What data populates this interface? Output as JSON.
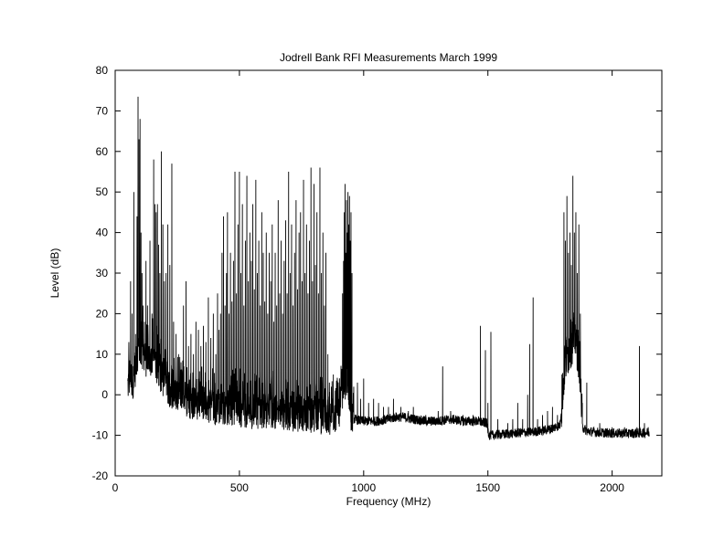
{
  "chart_data": {
    "type": "line",
    "title": "Jodrell Bank RFI Measurements March 1999",
    "xlabel": "Frequency (MHz)",
    "ylabel": "Level (dB)",
    "xlim": [
      0,
      2200
    ],
    "ylim": [
      -20,
      80
    ],
    "xticks": [
      0,
      500,
      1000,
      1500,
      2000
    ],
    "yticks": [
      -20,
      -10,
      0,
      10,
      20,
      30,
      40,
      50,
      60,
      70,
      80
    ],
    "grid": false,
    "legend": "none",
    "line_color": "#000000",
    "series": [
      {
        "baseline": [
          [
            50,
            2
          ],
          [
            60,
            5
          ],
          [
            70,
            3
          ],
          [
            80,
            6
          ],
          [
            95,
            12
          ],
          [
            110,
            10
          ],
          [
            130,
            8
          ],
          [
            150,
            9
          ],
          [
            175,
            6
          ],
          [
            200,
            3
          ],
          [
            240,
            0
          ],
          [
            280,
            -1
          ],
          [
            320,
            -2
          ],
          [
            360,
            -2
          ],
          [
            400,
            -3
          ],
          [
            450,
            -3
          ],
          [
            500,
            -3.5
          ],
          [
            550,
            -4
          ],
          [
            600,
            -4
          ],
          [
            650,
            -4
          ],
          [
            700,
            -4.5
          ],
          [
            750,
            -5
          ],
          [
            800,
            -5
          ],
          [
            850,
            -5.5
          ],
          [
            900,
            -5
          ],
          [
            920,
            2
          ],
          [
            935,
            5
          ],
          [
            950,
            -5
          ],
          [
            960,
            -6
          ],
          [
            1000,
            -6.5
          ],
          [
            1050,
            -6.5
          ],
          [
            1100,
            -6
          ],
          [
            1130,
            -5.5
          ],
          [
            1160,
            -5.5
          ],
          [
            1200,
            -6
          ],
          [
            1250,
            -6.5
          ],
          [
            1300,
            -6.5
          ],
          [
            1350,
            -6
          ],
          [
            1400,
            -6.5
          ],
          [
            1450,
            -6.5
          ],
          [
            1495,
            -7
          ],
          [
            1505,
            -10
          ],
          [
            1550,
            -9.8
          ],
          [
            1600,
            -9.5
          ],
          [
            1650,
            -9.3
          ],
          [
            1700,
            -9
          ],
          [
            1750,
            -8.5
          ],
          [
            1790,
            -7.5
          ],
          [
            1810,
            8
          ],
          [
            1830,
            12
          ],
          [
            1850,
            15
          ],
          [
            1870,
            8
          ],
          [
            1880,
            -8
          ],
          [
            1900,
            -9
          ],
          [
            1950,
            -9.3
          ],
          [
            2000,
            -9.5
          ],
          [
            2050,
            -9.5
          ],
          [
            2100,
            -9.5
          ],
          [
            2150,
            -9.3
          ]
        ],
        "spikes": [
          [
            55,
            13
          ],
          [
            62,
            28
          ],
          [
            68,
            20
          ],
          [
            75,
            50
          ],
          [
            82,
            15
          ],
          [
            88,
            44
          ],
          [
            92,
            73.5
          ],
          [
            96,
            63
          ],
          [
            100,
            68
          ],
          [
            104,
            40
          ],
          [
            108,
            30
          ],
          [
            112,
            22
          ],
          [
            118,
            18
          ],
          [
            124,
            33
          ],
          [
            130,
            22
          ],
          [
            140,
            38
          ],
          [
            148,
            20
          ],
          [
            155,
            58
          ],
          [
            160,
            47
          ],
          [
            165,
            45
          ],
          [
            170,
            47
          ],
          [
            175,
            37
          ],
          [
            180,
            30
          ],
          [
            186,
            60
          ],
          [
            192,
            42
          ],
          [
            198,
            28
          ],
          [
            205,
            30
          ],
          [
            212,
            42
          ],
          [
            220,
            32
          ],
          [
            228,
            57
          ],
          [
            235,
            18
          ],
          [
            245,
            15
          ],
          [
            255,
            10
          ],
          [
            265,
            8
          ],
          [
            275,
            22
          ],
          [
            285,
            28
          ],
          [
            295,
            12
          ],
          [
            305,
            15
          ],
          [
            315,
            10
          ],
          [
            325,
            18
          ],
          [
            335,
            16
          ],
          [
            345,
            12
          ],
          [
            355,
            17
          ],
          [
            365,
            13
          ],
          [
            375,
            24
          ],
          [
            385,
            14
          ],
          [
            395,
            20
          ],
          [
            405,
            10
          ],
          [
            412,
            25
          ],
          [
            418,
            16
          ],
          [
            424,
            20
          ],
          [
            430,
            35
          ],
          [
            436,
            44
          ],
          [
            442,
            22
          ],
          [
            448,
            30
          ],
          [
            452,
            45
          ],
          [
            458,
            20
          ],
          [
            464,
            35
          ],
          [
            470,
            23
          ],
          [
            476,
            33
          ],
          [
            482,
            55
          ],
          [
            488,
            25
          ],
          [
            494,
            42
          ],
          [
            500,
            55
          ],
          [
            506,
            30
          ],
          [
            512,
            47
          ],
          [
            518,
            22
          ],
          [
            524,
            38
          ],
          [
            530,
            54
          ],
          [
            536,
            28
          ],
          [
            542,
            40
          ],
          [
            548,
            33
          ],
          [
            554,
            47
          ],
          [
            560,
            26
          ],
          [
            566,
            53
          ],
          [
            572,
            30
          ],
          [
            578,
            38
          ],
          [
            584,
            22
          ],
          [
            590,
            45
          ],
          [
            596,
            35
          ],
          [
            602,
            23
          ],
          [
            608,
            40
          ],
          [
            614,
            20
          ],
          [
            620,
            35
          ],
          [
            626,
            28
          ],
          [
            632,
            42
          ],
          [
            638,
            18
          ],
          [
            644,
            35
          ],
          [
            650,
            22
          ],
          [
            656,
            48
          ],
          [
            662,
            25
          ],
          [
            668,
            38
          ],
          [
            674,
            20
          ],
          [
            680,
            33
          ],
          [
            686,
            43
          ],
          [
            692,
            25
          ],
          [
            698,
            55
          ],
          [
            704,
            30
          ],
          [
            710,
            42
          ],
          [
            716,
            22
          ],
          [
            722,
            35
          ],
          [
            728,
            48
          ],
          [
            734,
            26
          ],
          [
            740,
            40
          ],
          [
            746,
            45
          ],
          [
            752,
            28
          ],
          [
            758,
            53
          ],
          [
            764,
            30
          ],
          [
            770,
            42
          ],
          [
            776,
            25
          ],
          [
            782,
            38
          ],
          [
            788,
            56
          ],
          [
            794,
            28
          ],
          [
            800,
            52
          ],
          [
            806,
            32
          ],
          [
            812,
            45
          ],
          [
            818,
            25
          ],
          [
            824,
            56
          ],
          [
            830,
            30
          ],
          [
            836,
            40
          ],
          [
            842,
            22
          ],
          [
            848,
            35
          ],
          [
            856,
            10
          ],
          [
            862,
            3
          ],
          [
            870,
            2
          ],
          [
            878,
            5
          ],
          [
            886,
            1
          ],
          [
            895,
            3
          ],
          [
            905,
            2
          ],
          [
            915,
            25
          ],
          [
            919,
            33
          ],
          [
            922,
            45
          ],
          [
            925,
            52
          ],
          [
            928,
            35
          ],
          [
            931,
            48
          ],
          [
            934,
            40
          ],
          [
            937,
            50
          ],
          [
            940,
            42
          ],
          [
            943,
            49
          ],
          [
            946,
            38
          ],
          [
            949,
            45
          ],
          [
            953,
            30
          ],
          [
            960,
            2
          ],
          [
            975,
            3
          ],
          [
            988,
            -1
          ],
          [
            1000,
            4
          ],
          [
            1020,
            -2
          ],
          [
            1040,
            -1
          ],
          [
            1060,
            -2
          ],
          [
            1080,
            -3
          ],
          [
            1100,
            -3
          ],
          [
            1120,
            -1
          ],
          [
            1150,
            -3
          ],
          [
            1180,
            -4
          ],
          [
            1200,
            -3
          ],
          [
            1250,
            -5
          ],
          [
            1300,
            -4
          ],
          [
            1318,
            7
          ],
          [
            1350,
            -4
          ],
          [
            1400,
            -5
          ],
          [
            1440,
            -5
          ],
          [
            1470,
            17
          ],
          [
            1490,
            11
          ],
          [
            1500,
            -2
          ],
          [
            1512,
            15.5
          ],
          [
            1540,
            -6
          ],
          [
            1580,
            -7
          ],
          [
            1600,
            -6
          ],
          [
            1620,
            -2
          ],
          [
            1640,
            -6
          ],
          [
            1660,
            0
          ],
          [
            1668,
            12.5
          ],
          [
            1682,
            24
          ],
          [
            1700,
            -6
          ],
          [
            1720,
            -5
          ],
          [
            1740,
            -4
          ],
          [
            1760,
            -3
          ],
          [
            1780,
            -5
          ],
          [
            1798,
            5
          ],
          [
            1806,
            45
          ],
          [
            1812,
            38
          ],
          [
            1818,
            49
          ],
          [
            1824,
            35
          ],
          [
            1830,
            40
          ],
          [
            1836,
            32
          ],
          [
            1842,
            54
          ],
          [
            1848,
            40
          ],
          [
            1854,
            45
          ],
          [
            1860,
            30
          ],
          [
            1866,
            42
          ],
          [
            1872,
            20
          ],
          [
            1880,
            -2
          ],
          [
            1898,
            3
          ],
          [
            1950,
            -7
          ],
          [
            2000,
            -8
          ],
          [
            2050,
            -8
          ],
          [
            2100,
            -8
          ],
          [
            2110,
            12
          ],
          [
            2130,
            -7
          ],
          [
            2145,
            -8
          ]
        ]
      }
    ]
  }
}
